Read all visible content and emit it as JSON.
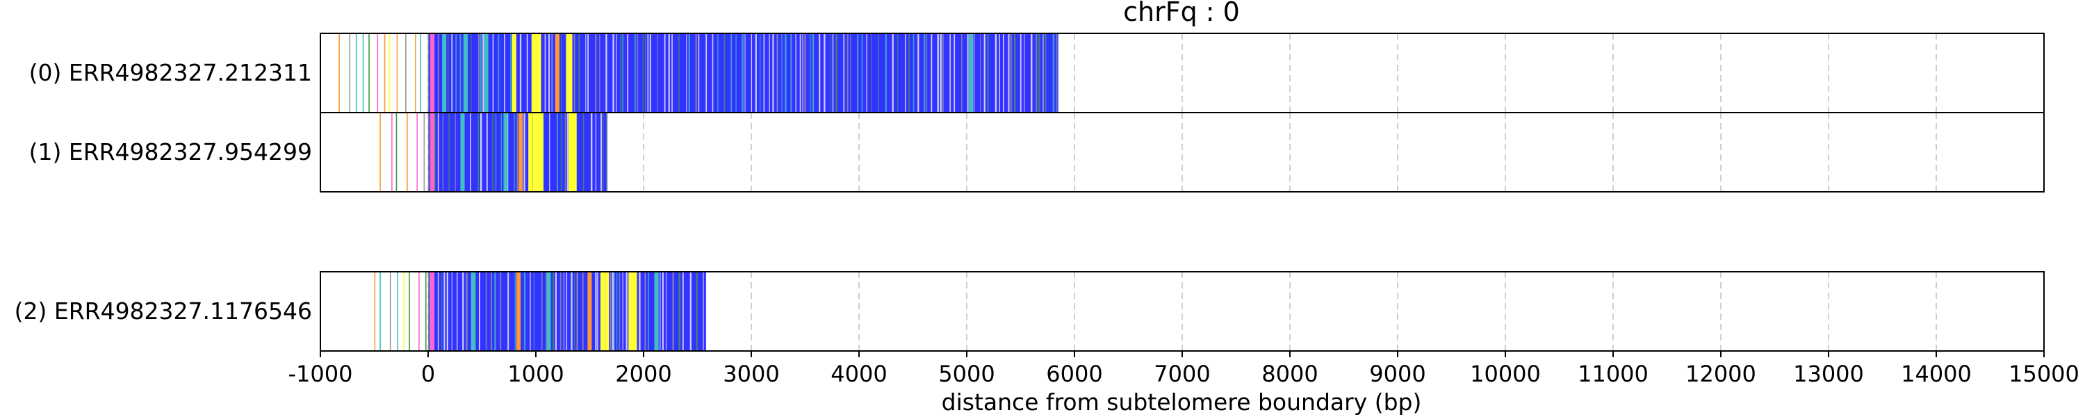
{
  "chart_data": {
    "type": "bar",
    "title": "chrFq : 0",
    "xlabel": "distance from subtelomere boundary (bp)",
    "ylabel": "",
    "xlim": [
      -1000,
      15000
    ],
    "xticks": [
      -1000,
      0,
      1000,
      2000,
      3000,
      4000,
      5000,
      6000,
      7000,
      8000,
      9000,
      10000,
      11000,
      12000,
      13000,
      14000,
      15000
    ],
    "tick_labels": [
      "-1000",
      "0",
      "1000",
      "2000",
      "3000",
      "4000",
      "5000",
      "6000",
      "7000",
      "8000",
      "9000",
      "10000",
      "11000",
      "12000",
      "13000",
      "14000",
      "15000"
    ],
    "grid": "vertical dashed",
    "colors": {
      "main": "#3333ff",
      "yellow": "#ffff33",
      "cyan": "#40c0c0",
      "green": "#40a040",
      "pink": "#ff66cc",
      "orange": "#ff9933",
      "white": "#ffffff",
      "gray": "#999999"
    },
    "series": [
      {
        "label": "(0) ERR4982327.212311",
        "start": 0,
        "end": 5850,
        "sparse_start": -830,
        "track": 0,
        "highlights": [
          {
            "x": 780,
            "c": "yellow"
          },
          {
            "x": 960,
            "c": "yellow"
          },
          {
            "x": 990,
            "c": "yellow"
          },
          {
            "x": 1010,
            "c": "yellow"
          },
          {
            "x": 1280,
            "c": "yellow"
          },
          {
            "x": 1300,
            "c": "yellow"
          },
          {
            "x": 130,
            "c": "cyan"
          },
          {
            "x": 330,
            "c": "cyan"
          },
          {
            "x": 520,
            "c": "cyan"
          },
          {
            "x": 5020,
            "c": "cyan"
          },
          {
            "x": 20,
            "c": "pink"
          },
          {
            "x": 1180,
            "c": "orange"
          }
        ]
      },
      {
        "label": "(1) ERR4982327.954299",
        "start": 0,
        "end": 1660,
        "sparse_start": -450,
        "track": 1,
        "highlights": [
          {
            "x": 930,
            "c": "yellow"
          },
          {
            "x": 970,
            "c": "yellow"
          },
          {
            "x": 1000,
            "c": "yellow"
          },
          {
            "x": 1030,
            "c": "yellow"
          },
          {
            "x": 1300,
            "c": "yellow"
          },
          {
            "x": 1320,
            "c": "yellow"
          },
          {
            "x": 1340,
            "c": "yellow"
          },
          {
            "x": 300,
            "c": "cyan"
          },
          {
            "x": 700,
            "c": "cyan"
          },
          {
            "x": 20,
            "c": "pink"
          },
          {
            "x": 840,
            "c": "orange"
          }
        ]
      },
      {
        "label": "(2) ERR4982327.1176546",
        "start": 0,
        "end": 2580,
        "sparse_start": -500,
        "track": 2,
        "highlights": [
          {
            "x": 1600,
            "c": "yellow"
          },
          {
            "x": 1640,
            "c": "yellow"
          },
          {
            "x": 1860,
            "c": "yellow"
          },
          {
            "x": 1880,
            "c": "yellow"
          },
          {
            "x": 1900,
            "c": "yellow"
          },
          {
            "x": 400,
            "c": "cyan"
          },
          {
            "x": 1100,
            "c": "cyan"
          },
          {
            "x": 2100,
            "c": "cyan"
          },
          {
            "x": 20,
            "c": "pink"
          },
          {
            "x": 820,
            "c": "orange"
          },
          {
            "x": 1480,
            "c": "orange"
          }
        ]
      }
    ]
  }
}
